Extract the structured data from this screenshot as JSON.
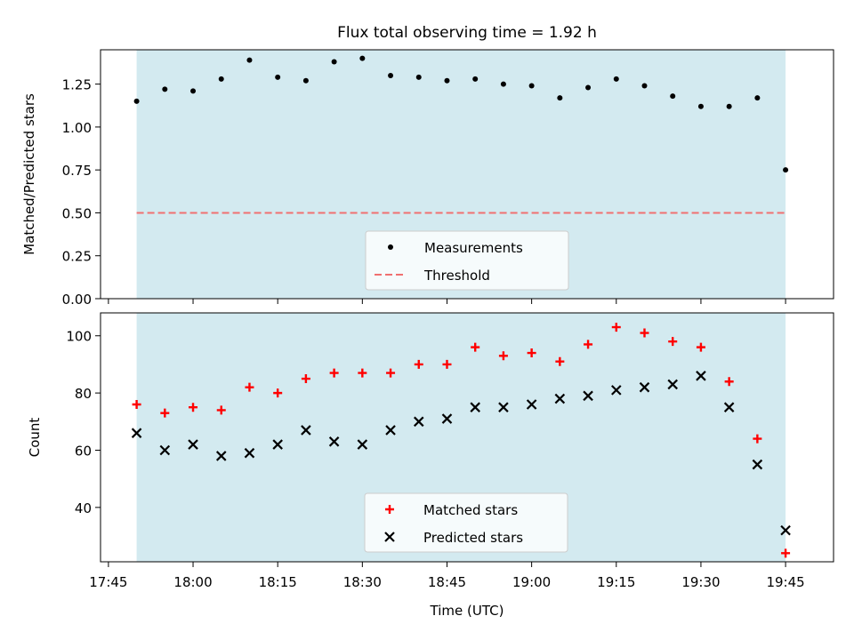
{
  "title": "Flux total observing time = 1.92 h",
  "chart_data": [
    {
      "type": "scatter",
      "ylabel": "Matched/Predicted stars",
      "ylim": [
        0,
        1.45
      ],
      "yticks": [
        0.0,
        0.25,
        0.5,
        0.75,
        1.0,
        1.25
      ],
      "ytick_labels": [
        "0.00",
        "0.25",
        "0.50",
        "0.75",
        "1.00",
        "1.25"
      ],
      "threshold": 0.5,
      "shaded_span": [
        "17:50",
        "19:45"
      ],
      "shade_color": "#d3eaf0",
      "legend_position": "lower center",
      "series": [
        {
          "name": "Measurements",
          "marker": "dot",
          "color": "#000000",
          "x": [
            "17:50",
            "17:55",
            "18:00",
            "18:05",
            "18:10",
            "18:15",
            "18:20",
            "18:25",
            "18:30",
            "18:35",
            "18:40",
            "18:45",
            "18:50",
            "18:55",
            "19:00",
            "19:05",
            "19:10",
            "19:15",
            "19:20",
            "19:25",
            "19:30",
            "19:35",
            "19:40",
            "19:45"
          ],
          "y": [
            1.15,
            1.22,
            1.21,
            1.28,
            1.39,
            1.29,
            1.27,
            1.38,
            1.4,
            1.3,
            1.29,
            1.27,
            1.28,
            1.25,
            1.24,
            1.17,
            1.23,
            1.28,
            1.24,
            1.18,
            1.12,
            1.12,
            1.17,
            0.75
          ]
        },
        {
          "name": "Threshold",
          "marker": "dashed-line",
          "color": "#f07070"
        }
      ]
    },
    {
      "type": "scatter",
      "ylabel": "Count",
      "xlabel": "Time (UTC)",
      "ylim": [
        21,
        108
      ],
      "yticks": [
        40,
        60,
        80,
        100
      ],
      "xticks": [
        "17:45",
        "18:00",
        "18:15",
        "18:30",
        "18:45",
        "19:00",
        "19:15",
        "19:30",
        "19:45"
      ],
      "shaded_span": [
        "17:50",
        "19:45"
      ],
      "shade_color": "#d3eaf0",
      "legend_position": "lower center",
      "series": [
        {
          "name": "Matched stars",
          "marker": "plus",
          "color": "#ff0000",
          "x": [
            "17:50",
            "17:55",
            "18:00",
            "18:05",
            "18:10",
            "18:15",
            "18:20",
            "18:25",
            "18:30",
            "18:35",
            "18:40",
            "18:45",
            "18:50",
            "18:55",
            "19:00",
            "19:05",
            "19:10",
            "19:15",
            "19:20",
            "19:25",
            "19:30",
            "19:35",
            "19:40",
            "19:45"
          ],
          "y": [
            76,
            73,
            75,
            74,
            82,
            80,
            85,
            87,
            87,
            87,
            90,
            90,
            96,
            93,
            94,
            91,
            97,
            103,
            101,
            98,
            96,
            84,
            64,
            24
          ]
        },
        {
          "name": "Predicted stars",
          "marker": "x",
          "color": "#000000",
          "x": [
            "17:50",
            "17:55",
            "18:00",
            "18:05",
            "18:10",
            "18:15",
            "18:20",
            "18:25",
            "18:30",
            "18:35",
            "18:40",
            "18:45",
            "18:50",
            "18:55",
            "19:00",
            "19:05",
            "19:10",
            "19:15",
            "19:20",
            "19:25",
            "19:30",
            "19:35",
            "19:40",
            "19:45"
          ],
          "y": [
            66,
            60,
            62,
            58,
            59,
            62,
            67,
            63,
            62,
            67,
            70,
            71,
            75,
            75,
            76,
            78,
            79,
            81,
            82,
            83,
            86,
            75,
            55,
            32
          ]
        }
      ]
    }
  ]
}
